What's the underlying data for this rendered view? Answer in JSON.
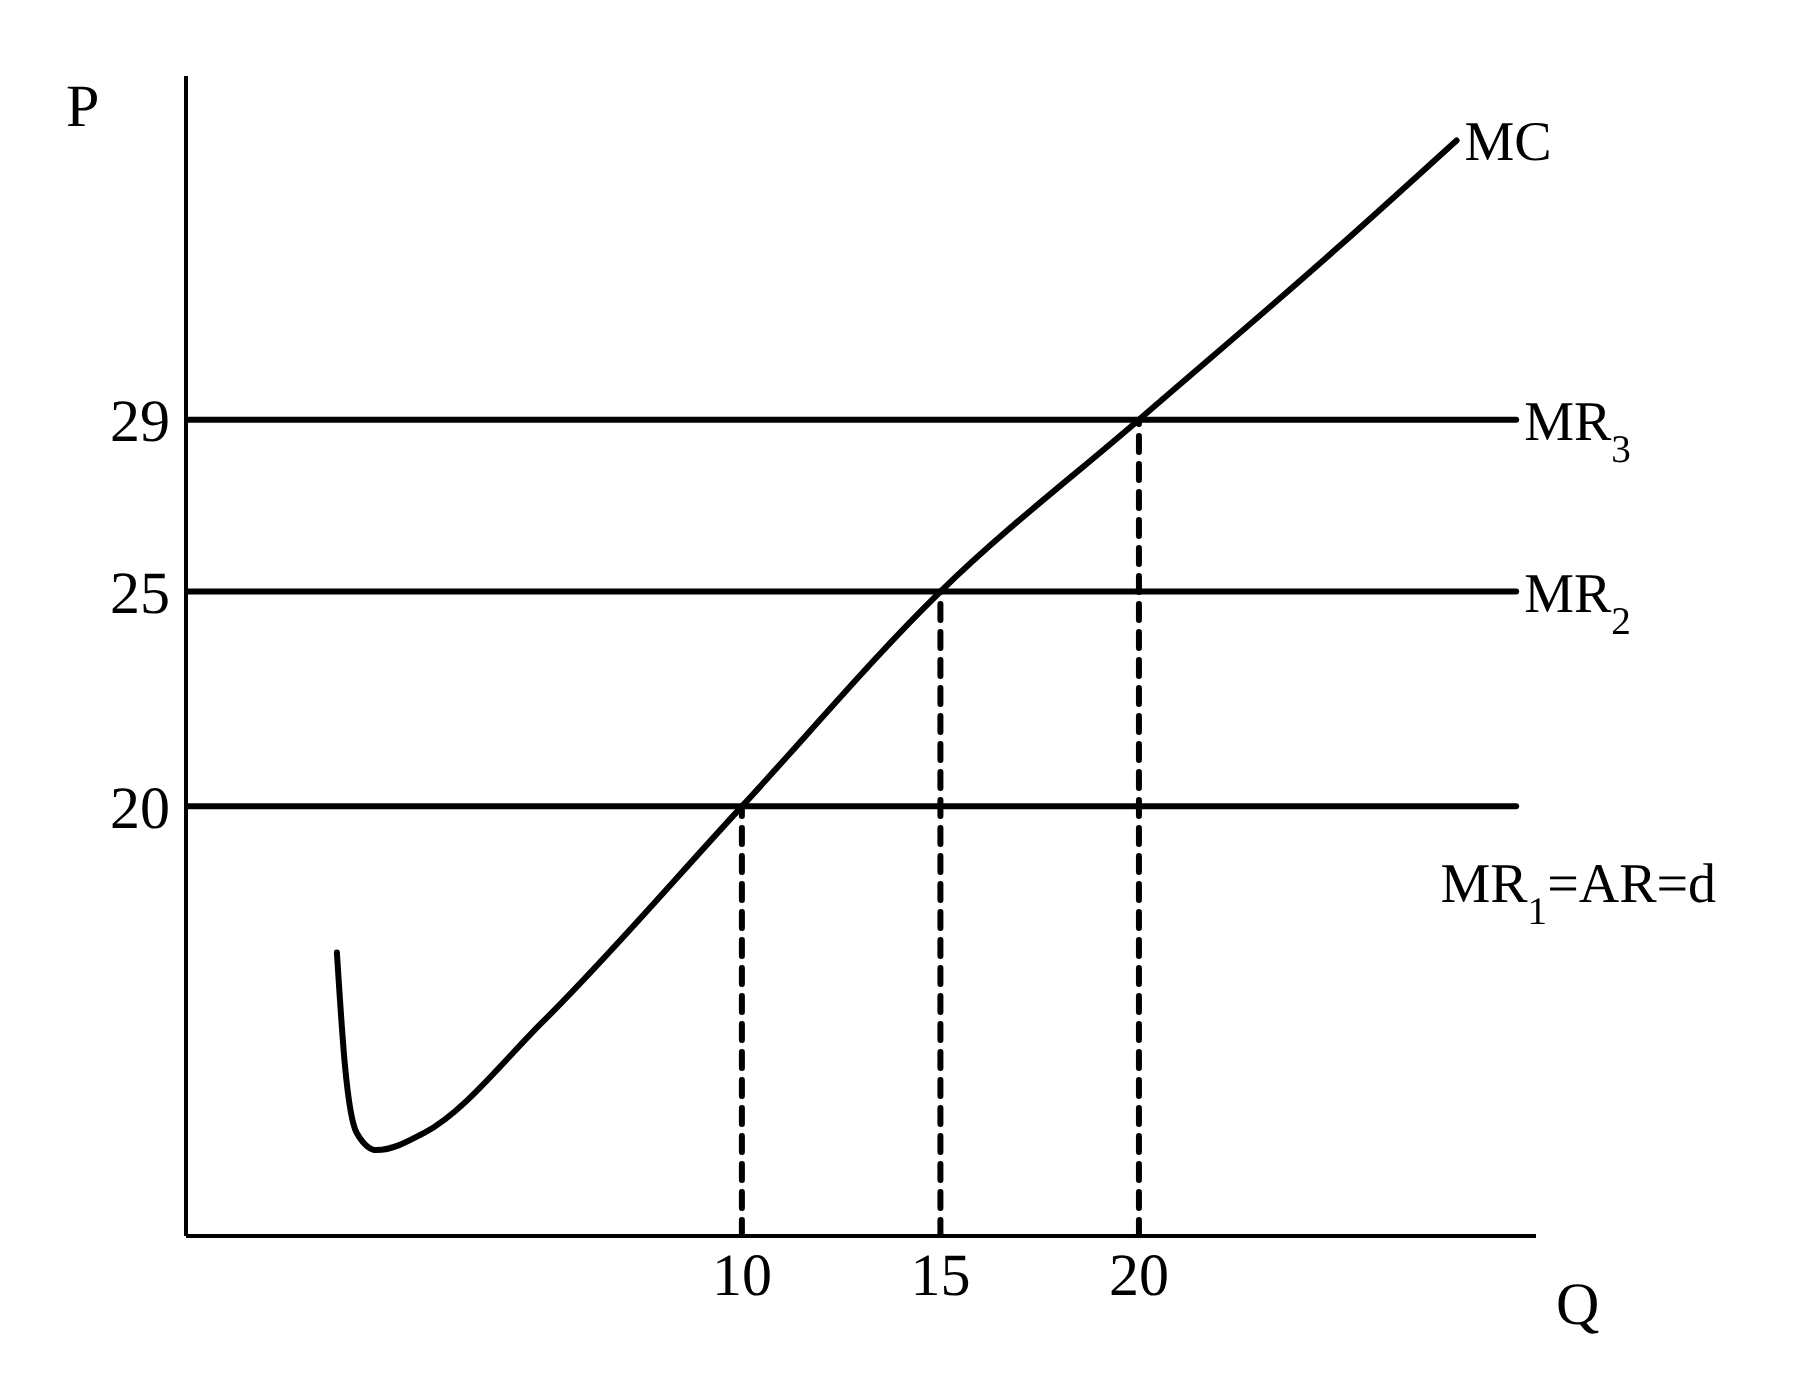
{
  "chart_data": {
    "type": "line",
    "xlabel": "Q",
    "ylabel": "P",
    "xlim": [
      -4,
      30
    ],
    "ylim": [
      10,
      37
    ],
    "xticks": [
      10,
      15,
      20
    ],
    "yticks": [
      20,
      25,
      29
    ],
    "grid": false,
    "legend": false,
    "marker": "none",
    "series": [
      {
        "name": "MC",
        "color": "#000000",
        "x": [
          -0.2,
          0,
          0.3,
          0.8,
          2,
          5,
          10,
          15,
          20,
          25,
          28
        ],
        "values": [
          16.6,
          14,
          12.4,
          12,
          12.4,
          15,
          20,
          25,
          29,
          33,
          35.5
        ]
      },
      {
        "name": "MR$_{3}$",
        "color": "#000000",
        "x": [
          -4,
          29.5
        ],
        "values": [
          29,
          29
        ]
      },
      {
        "name": "MR$_{2}$",
        "color": "#000000",
        "x": [
          -4,
          29.5
        ],
        "values": [
          25,
          25
        ]
      },
      {
        "name": "MR$_{1}$=AR=d",
        "color": "#000000",
        "x": [
          -4,
          29.5
        ],
        "values": [
          20,
          20
        ]
      },
      {
        "color": "#000000",
        "line_style": "dashed",
        "x": [
          10,
          10
        ],
        "values": [
          10,
          20
        ]
      },
      {
        "color": "#000000",
        "line_style": "dashed",
        "x": [
          15,
          15
        ],
        "values": [
          10,
          25
        ]
      },
      {
        "color": "#000000",
        "line_style": "dashed",
        "x": [
          20,
          20
        ],
        "values": [
          10,
          29
        ]
      }
    ]
  }
}
